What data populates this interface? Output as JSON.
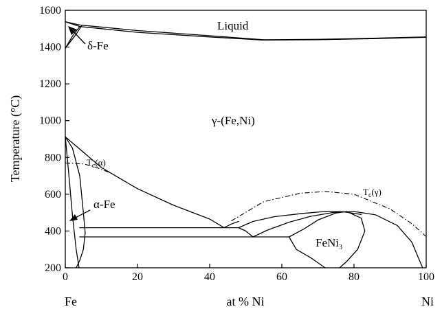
{
  "chart_data": {
    "type": "line",
    "xlabel": "at % Ni",
    "ylabel": "Temperature (°C)",
    "xlim": [
      0,
      100
    ],
    "ylim": [
      200,
      1600
    ],
    "x_ticks": [
      0,
      20,
      40,
      60,
      80,
      100
    ],
    "y_ticks": [
      200,
      400,
      600,
      800,
      1000,
      1200,
      1400,
      1600
    ],
    "x_end_labels": {
      "left": "Fe",
      "right": "Ni"
    },
    "grid": false,
    "region_labels": {
      "liquid": "Liquid",
      "delta_fe": "δ-Fe",
      "gamma": "γ-(Fe,Ni)",
      "alpha_fe": "α-Fe",
      "feni3_main": "FeNi",
      "feni3_sub": "3",
      "tc_alpha_main": "T",
      "tc_alpha_sub": "c",
      "tc_alpha_paren": "(α)",
      "tc_gamma_main": "T",
      "tc_gamma_sub": "c",
      "tc_gamma_paren": "(γ)"
    },
    "series": [
      {
        "style": "solid",
        "points": [
          [
            0,
            1538
          ],
          [
            4,
            1520
          ],
          [
            20,
            1490
          ],
          [
            40,
            1462
          ],
          [
            55,
            1440
          ],
          [
            70,
            1442
          ],
          [
            85,
            1448
          ],
          [
            100,
            1455
          ]
        ]
      },
      {
        "style": "solid",
        "points": [
          [
            0,
            1538
          ],
          [
            4,
            1512
          ],
          [
            20,
            1480
          ],
          [
            40,
            1455
          ],
          [
            55,
            1438
          ],
          [
            70,
            1440
          ],
          [
            85,
            1446
          ],
          [
            100,
            1453
          ]
        ]
      },
      {
        "style": "solid",
        "points": [
          [
            0,
            1394
          ],
          [
            3,
            1470
          ],
          [
            4.5,
            1515
          ]
        ]
      },
      {
        "style": "solid",
        "points": [
          [
            0,
            1394
          ],
          [
            2,
            1460
          ],
          [
            4,
            1512
          ]
        ]
      },
      {
        "style": "solid",
        "points": [
          [
            0,
            912
          ],
          [
            10,
            745
          ],
          [
            20,
            630
          ],
          [
            30,
            540
          ],
          [
            40,
            465
          ],
          [
            44,
            418
          ]
        ]
      },
      {
        "style": "solid",
        "points": [
          [
            0,
            912
          ],
          [
            2,
            850
          ],
          [
            4,
            700
          ],
          [
            5,
            500
          ],
          [
            5.5,
            390
          ]
        ]
      },
      {
        "style": "solid",
        "points": [
          [
            4,
            418
          ],
          [
            48,
            418
          ]
        ]
      },
      {
        "style": "solid",
        "points": [
          [
            4,
            368
          ],
          [
            62,
            368
          ]
        ]
      },
      {
        "style": "solid",
        "points": [
          [
            44,
            418
          ],
          [
            46,
            438
          ],
          [
            48,
            452
          ]
        ]
      },
      {
        "style": "solid",
        "points": [
          [
            48,
            418
          ],
          [
            50,
            400
          ],
          [
            52,
            368
          ]
        ]
      },
      {
        "style": "solid",
        "points": [
          [
            48,
            418
          ],
          [
            52,
            452
          ],
          [
            58,
            478
          ],
          [
            66,
            496
          ],
          [
            72,
            506
          ],
          [
            77,
            505
          ],
          [
            82,
            490
          ]
        ]
      },
      {
        "style": "solid",
        "points": [
          [
            52,
            368
          ],
          [
            56,
            405
          ],
          [
            62,
            448
          ],
          [
            68,
            480
          ],
          [
            74,
            500
          ],
          [
            80,
            506
          ],
          [
            86,
            488
          ],
          [
            92,
            430
          ],
          [
            96,
            340
          ],
          [
            99,
            200
          ]
        ]
      },
      {
        "style": "solid",
        "points": [
          [
            62,
            368
          ],
          [
            66,
            410
          ],
          [
            70,
            460
          ],
          [
            75,
            498
          ],
          [
            78,
            506
          ]
        ]
      },
      {
        "style": "solid",
        "points": [
          [
            62,
            368
          ],
          [
            64,
            300
          ],
          [
            68,
            255
          ],
          [
            72,
            200
          ]
        ]
      },
      {
        "style": "solid",
        "points": [
          [
            78,
            506
          ],
          [
            82,
            470
          ],
          [
            83,
            400
          ],
          [
            81,
            300
          ],
          [
            78,
            235
          ],
          [
            76,
            200
          ]
        ]
      },
      {
        "style": "solid",
        "points": [
          [
            5.5,
            390
          ],
          [
            5,
            300
          ],
          [
            4,
            240
          ],
          [
            3,
            200
          ]
        ]
      },
      {
        "style": "solid",
        "points": [
          [
            0,
            912
          ],
          [
            1,
            700
          ],
          [
            2,
            480
          ],
          [
            3,
            300
          ],
          [
            3.8,
            200
          ]
        ]
      },
      {
        "style": "dashdot",
        "points": [
          [
            0,
            770
          ],
          [
            5,
            765
          ],
          [
            8,
            750
          ],
          [
            12,
            720
          ]
        ]
      },
      {
        "style": "dashdot",
        "points": [
          [
            46,
            455
          ],
          [
            55,
            560
          ],
          [
            65,
            605
          ],
          [
            72,
            615
          ],
          [
            80,
            600
          ],
          [
            90,
            520
          ],
          [
            96,
            440
          ],
          [
            100,
            370
          ]
        ]
      }
    ]
  }
}
